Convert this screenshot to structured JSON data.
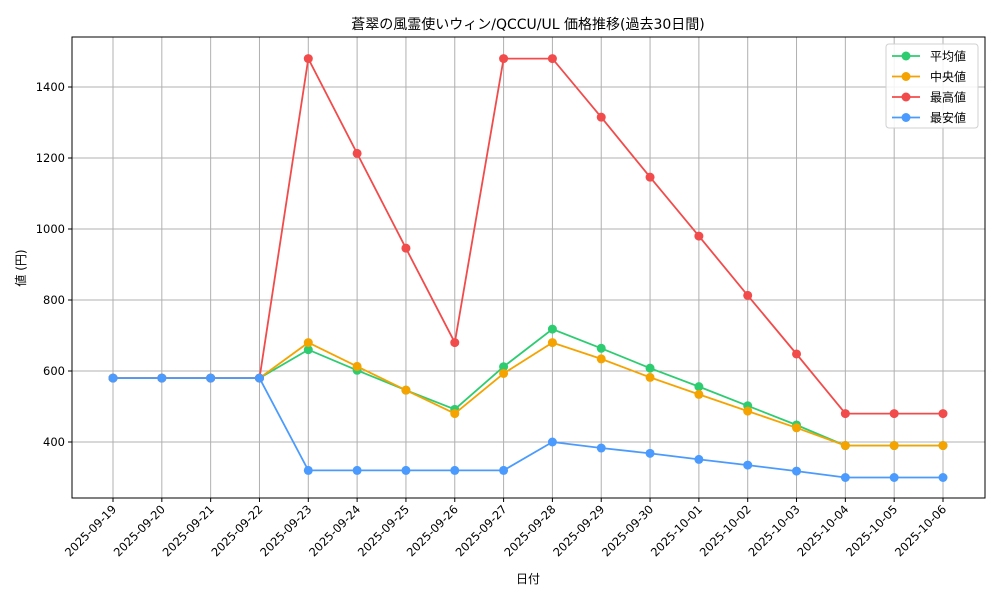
{
  "chart_data": {
    "type": "line",
    "title": "蒼翠の風霊使いウィン/QCCU/UL 価格推移(過去30日間)",
    "xlabel": "日付",
    "ylabel": "値 (円)",
    "ylim": [
      240,
      1540
    ],
    "yticks": [
      400,
      600,
      800,
      1000,
      1200,
      1400
    ],
    "grid": true,
    "legend_position": "upper right",
    "categories": [
      "2025-09-19",
      "2025-09-20",
      "2025-09-21",
      "2025-09-22",
      "2025-09-23",
      "2025-09-24",
      "2025-09-25",
      "2025-09-26",
      "2025-09-27",
      "2025-09-28",
      "2025-09-29",
      "2025-09-30",
      "2025-10-01",
      "2025-10-02",
      "2025-10-03",
      "2025-10-04",
      "2025-10-05",
      "2025-10-06"
    ],
    "series": [
      {
        "name": "平均値",
        "color": "#2ecc71",
        "values": [
          580,
          580,
          580,
          580,
          660,
          602,
          546,
          492,
          612,
          718,
          664,
          608,
          556,
          502,
          448,
          390,
          390,
          390
        ]
      },
      {
        "name": "中央値",
        "color": "#f5a300",
        "values": [
          580,
          580,
          580,
          580,
          680,
          613,
          546,
          480,
          593,
          680,
          634,
          582,
          534,
          487,
          440,
          390,
          390,
          390
        ]
      },
      {
        "name": "最高値",
        "color": "#f24b4b",
        "values": [
          580,
          580,
          580,
          580,
          1480,
          1213,
          946,
          680,
          1480,
          1480,
          1315,
          1146,
          980,
          813,
          648,
          480,
          480,
          480
        ]
      },
      {
        "name": "最安値",
        "color": "#4b9bff",
        "values": [
          580,
          580,
          580,
          580,
          320,
          320,
          320,
          320,
          320,
          400,
          383,
          368,
          351,
          335,
          318,
          300,
          300,
          300
        ]
      }
    ]
  }
}
